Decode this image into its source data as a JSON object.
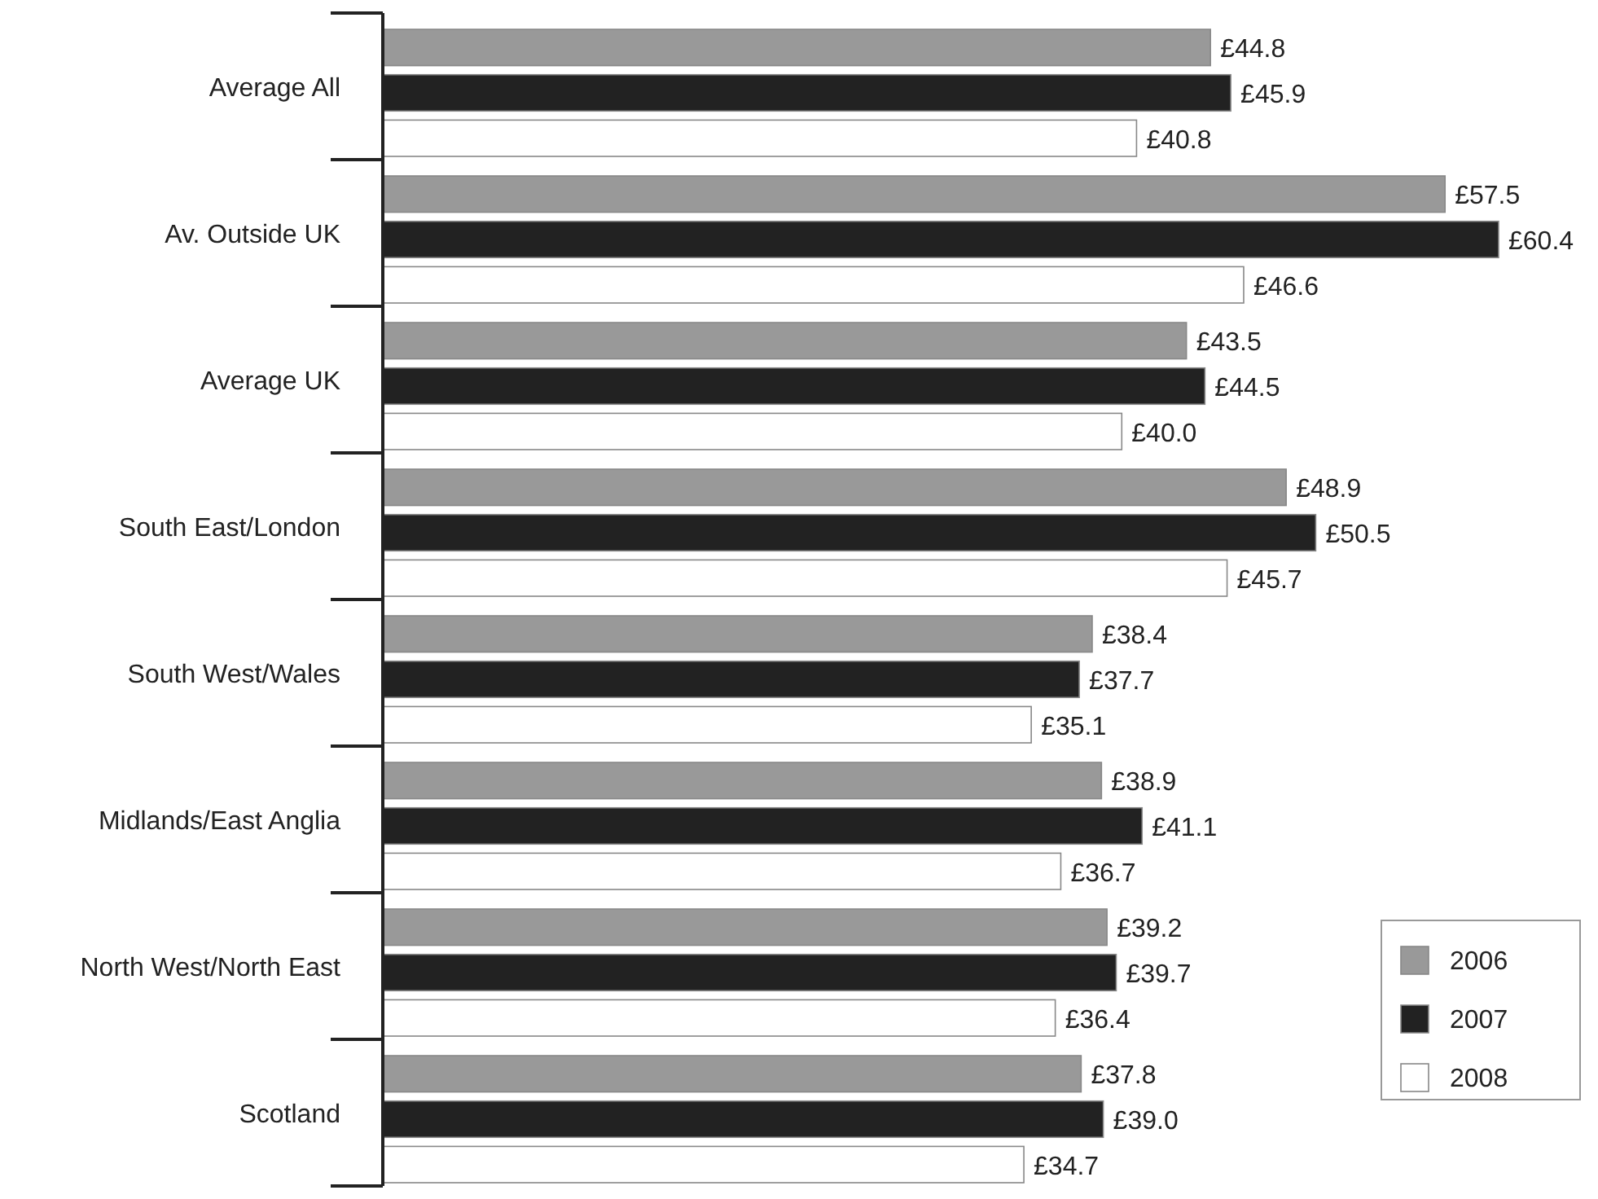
{
  "chart_data": {
    "type": "bar",
    "orientation": "horizontal",
    "categories": [
      "Average All",
      "Av. Outside UK",
      "Average UK",
      "South East/London",
      "South West/Wales",
      "Midlands/East Anglia",
      "North West/North East",
      "Scotland"
    ],
    "series": [
      {
        "name": "2006",
        "color": "#999999",
        "values": [
          44.8,
          57.5,
          43.5,
          48.9,
          38.4,
          38.9,
          39.2,
          37.8
        ],
        "value_labels": [
          "£44.8",
          "£57.5",
          "£43.5",
          "£48.9",
          "£38.4",
          "£38.9",
          "£39.2",
          "£37.8"
        ]
      },
      {
        "name": "2007",
        "color": "#222222",
        "values": [
          45.9,
          60.4,
          44.5,
          50.5,
          37.7,
          41.1,
          39.7,
          39.0
        ],
        "value_labels": [
          "£45.9",
          "£60.4",
          "£44.5",
          "£50.5",
          "£37.7",
          "£41.1",
          "£39.7",
          "£39.0"
        ]
      },
      {
        "name": "2008",
        "color": "#ffffff",
        "values": [
          40.8,
          46.6,
          40.0,
          45.7,
          35.1,
          36.7,
          36.4,
          34.7
        ],
        "value_labels": [
          "£40.8",
          "£46.6",
          "£40.0",
          "£45.7",
          "£35.1",
          "£36.7",
          "£36.4",
          "£34.7"
        ]
      }
    ],
    "legend": "bottom right"
  }
}
